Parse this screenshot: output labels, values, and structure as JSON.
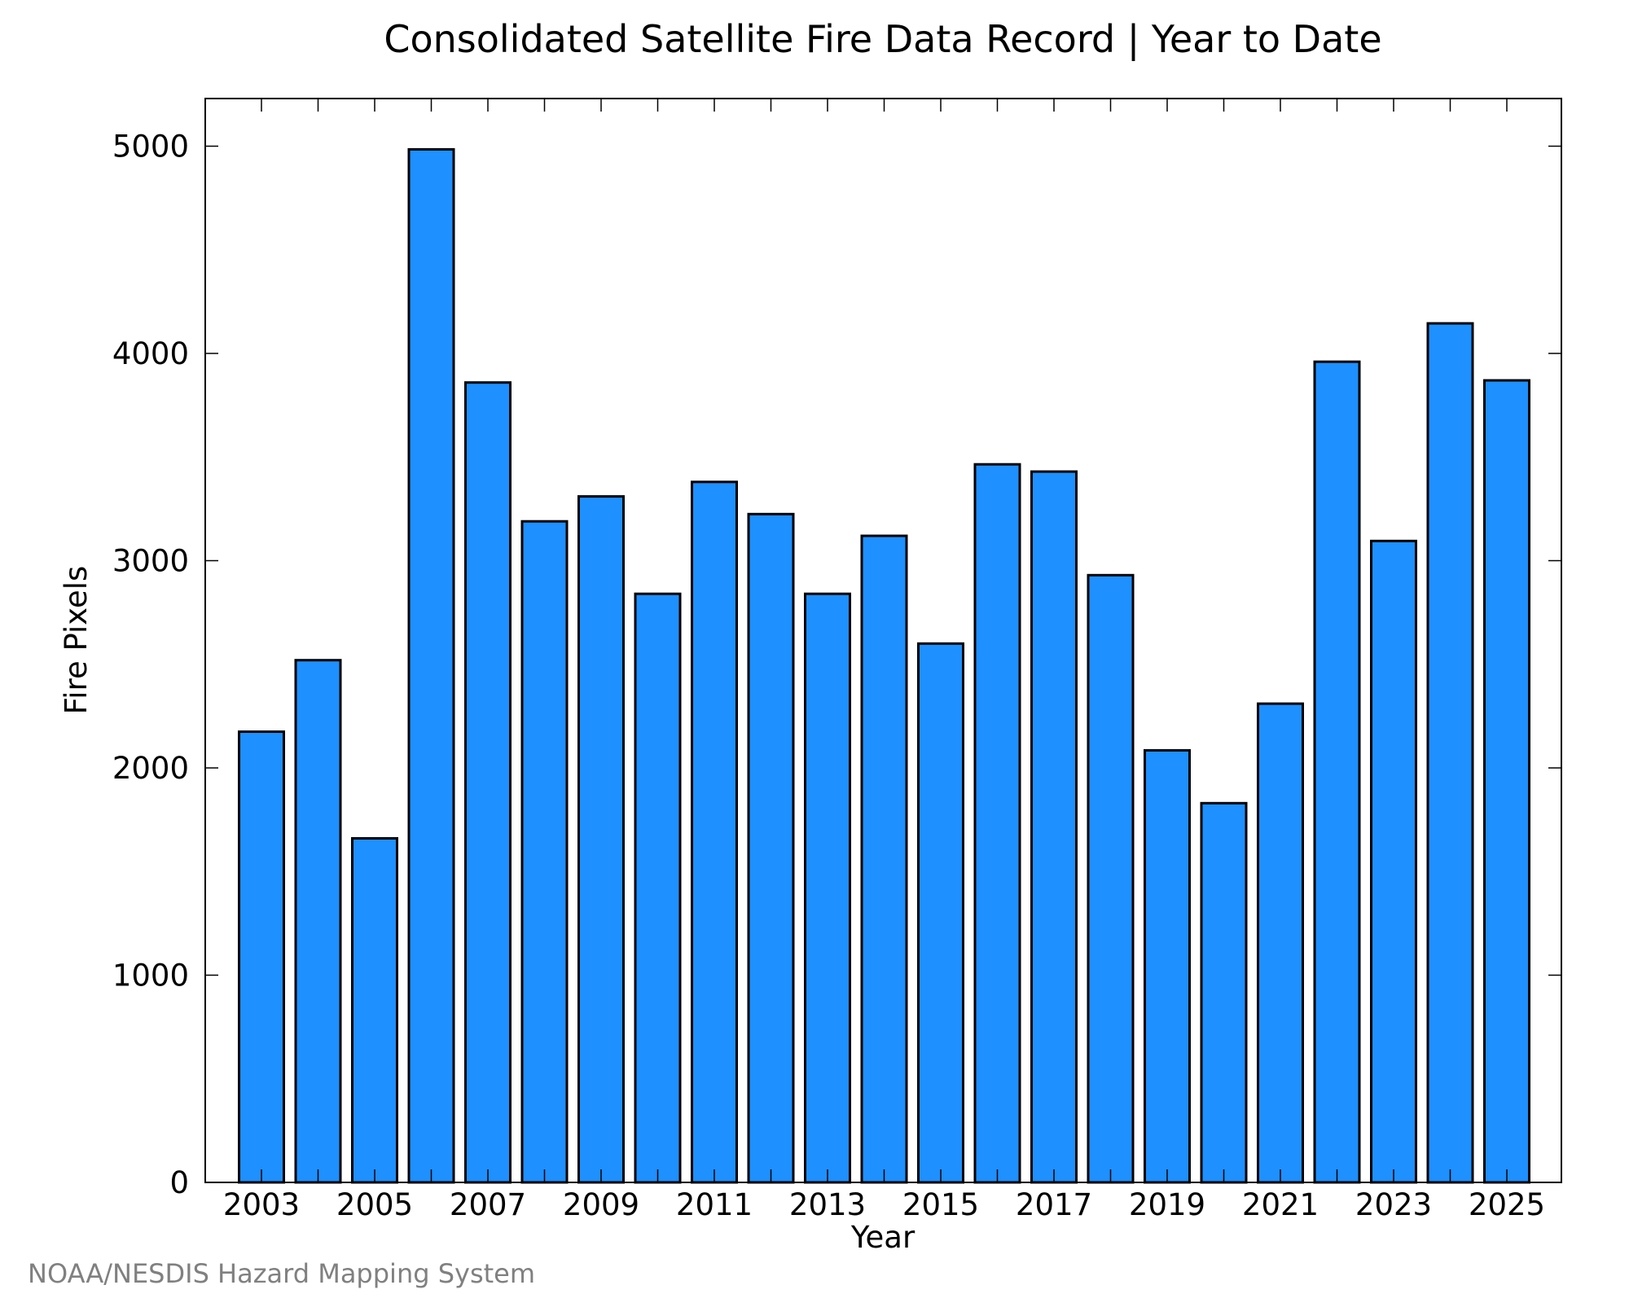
{
  "chart_data": {
    "type": "bar",
    "title": "Consolidated Satellite Fire Data Record | Year to Date",
    "xlabel": "Year",
    "ylabel": "Fire Pixels",
    "categories": [
      "2003",
      "2004",
      "2005",
      "2006",
      "2007",
      "2008",
      "2009",
      "2010",
      "2011",
      "2012",
      "2013",
      "2014",
      "2015",
      "2016",
      "2017",
      "2018",
      "2019",
      "2020",
      "2021",
      "2022",
      "2023",
      "2024",
      "2025"
    ],
    "values": [
      2175,
      2520,
      1660,
      4985,
      3860,
      3190,
      3310,
      2840,
      3380,
      3225,
      2840,
      3120,
      2600,
      3465,
      3430,
      2930,
      2085,
      1830,
      2310,
      3960,
      3095,
      4145,
      3870
    ],
    "xticks": [
      "2003",
      "2005",
      "2007",
      "2009",
      "2011",
      "2013",
      "2015",
      "2017",
      "2019",
      "2021",
      "2023",
      "2025"
    ],
    "yticks": [
      0,
      1000,
      2000,
      3000,
      4000,
      5000
    ],
    "ylim": [
      0,
      5230
    ],
    "grid": false,
    "legend": "none",
    "bar_color": "#1E90FF",
    "edge_color": "#000000"
  },
  "credit": "NOAA/NESDIS Hazard Mapping System"
}
